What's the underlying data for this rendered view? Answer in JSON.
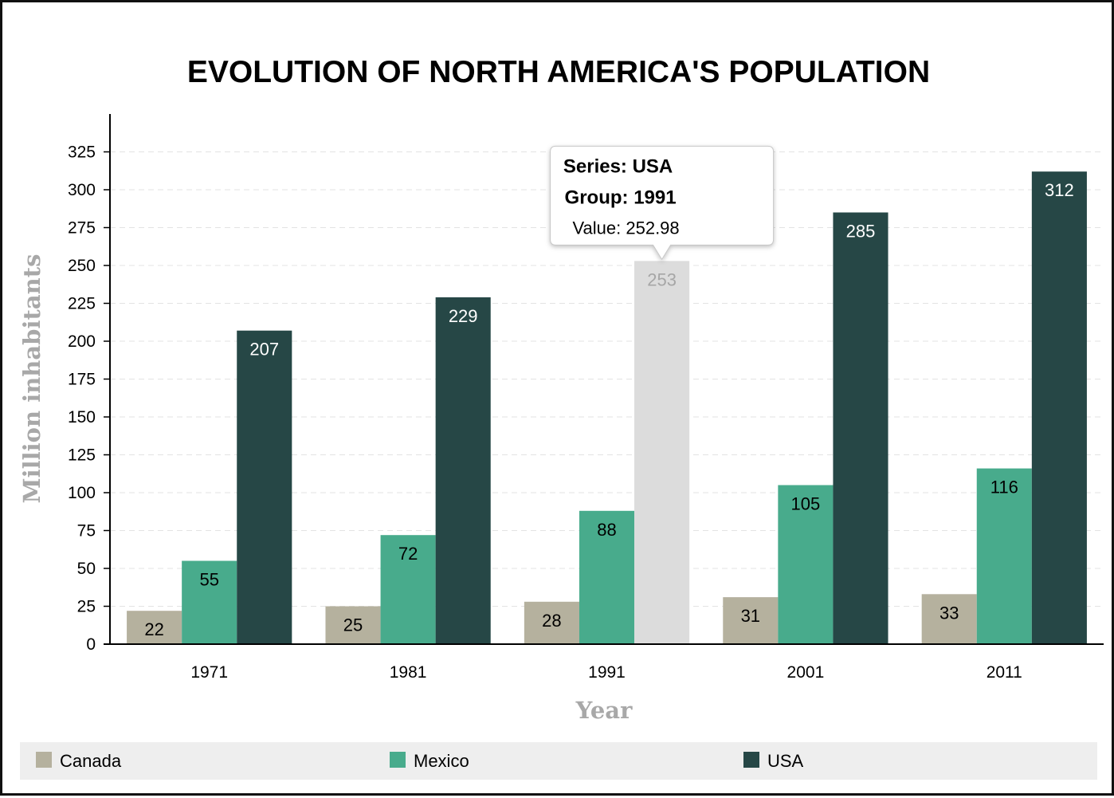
{
  "chart_data": {
    "type": "bar",
    "title": "EVOLUTION OF NORTH AMERICA'S POPULATION",
    "xlabel": "Year",
    "ylabel": "Million inhabitants",
    "categories": [
      "1971",
      "1981",
      "1991",
      "2001",
      "2011"
    ],
    "series": [
      {
        "name": "Canada",
        "color": "#b5b19e",
        "values": [
          22,
          25,
          28,
          31,
          33
        ],
        "labels": [
          "22",
          "25",
          "28",
          "31",
          "33"
        ]
      },
      {
        "name": "Mexico",
        "color": "#48ab8c",
        "values": [
          55,
          72,
          88,
          105,
          116
        ],
        "labels": [
          "55",
          "72",
          "88",
          "105",
          "116"
        ]
      },
      {
        "name": "USA",
        "color": "#264746",
        "values": [
          207,
          229,
          252.98,
          285,
          312
        ],
        "labels": [
          "207",
          "229",
          "253",
          "285",
          "312"
        ]
      }
    ],
    "ylim": [
      0,
      350
    ],
    "yticks": [
      0,
      25,
      50,
      75,
      100,
      125,
      150,
      175,
      200,
      225,
      250,
      275,
      300,
      325
    ],
    "grid": true,
    "legend_position": "bottom",
    "highlight": {
      "series": 2,
      "category": 2,
      "color": "#dcdcdc",
      "label_color": "#a6a6a6"
    },
    "tooltip": {
      "series_line": "Series: USA",
      "group_line": "Group: 1991",
      "value_line": "Value: 252.98"
    }
  }
}
